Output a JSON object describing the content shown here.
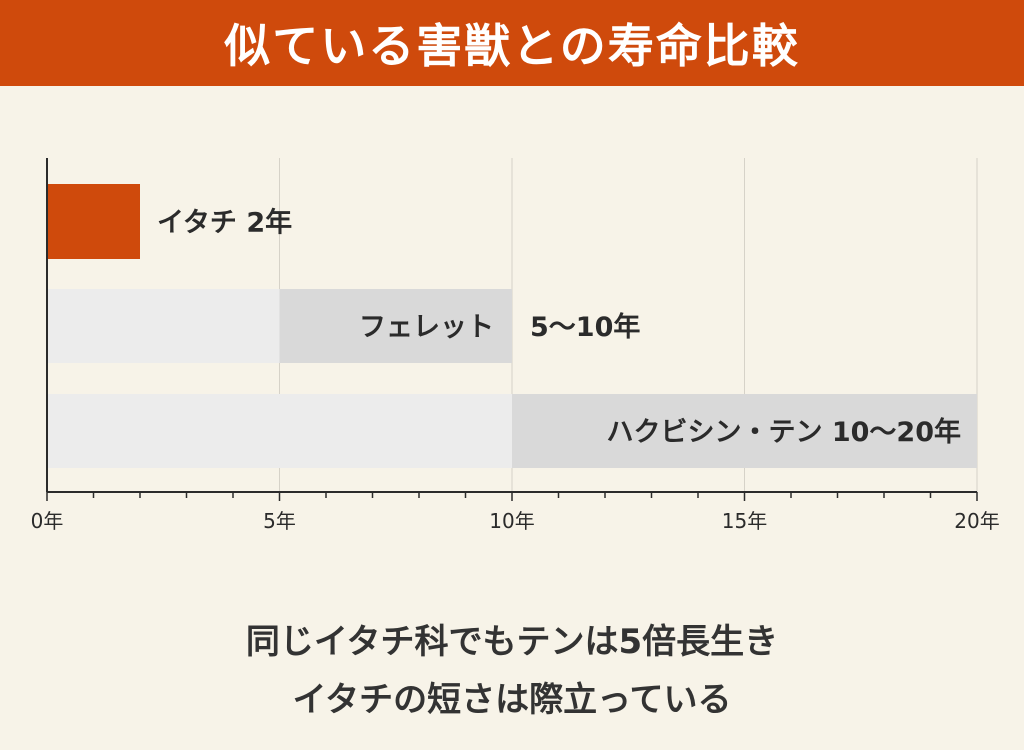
{
  "header": {
    "title": "似ている害獣との寿命比較"
  },
  "chart_data": {
    "type": "bar",
    "orientation": "horizontal",
    "x_unit_ticks": [
      "0年",
      "5年",
      "10年",
      "15年",
      "20年"
    ],
    "x_tick_values": [
      0,
      5,
      10,
      15,
      20
    ],
    "xlim": [
      0,
      20
    ],
    "grid": true,
    "series": [
      {
        "label": "イタチ  2年",
        "min": 2,
        "max": 2,
        "color": "#cf4a0c"
      },
      {
        "label": "フェレット",
        "value_label": "5〜10年",
        "min": 5,
        "max": 10,
        "color": "#d9d9d9"
      },
      {
        "label": "ハクビシン・テン  10〜20年",
        "min": 10,
        "max": 20,
        "color": "#d9d9d9"
      }
    ],
    "colors": {
      "range_fill": "#d9d9d9",
      "base_fill": "#ececec",
      "accent": "#cf4a0c"
    }
  },
  "caption": {
    "line1": "同じイタチ科でもテンは5倍長生き",
    "line2": "イタチの短さは際立っている"
  }
}
